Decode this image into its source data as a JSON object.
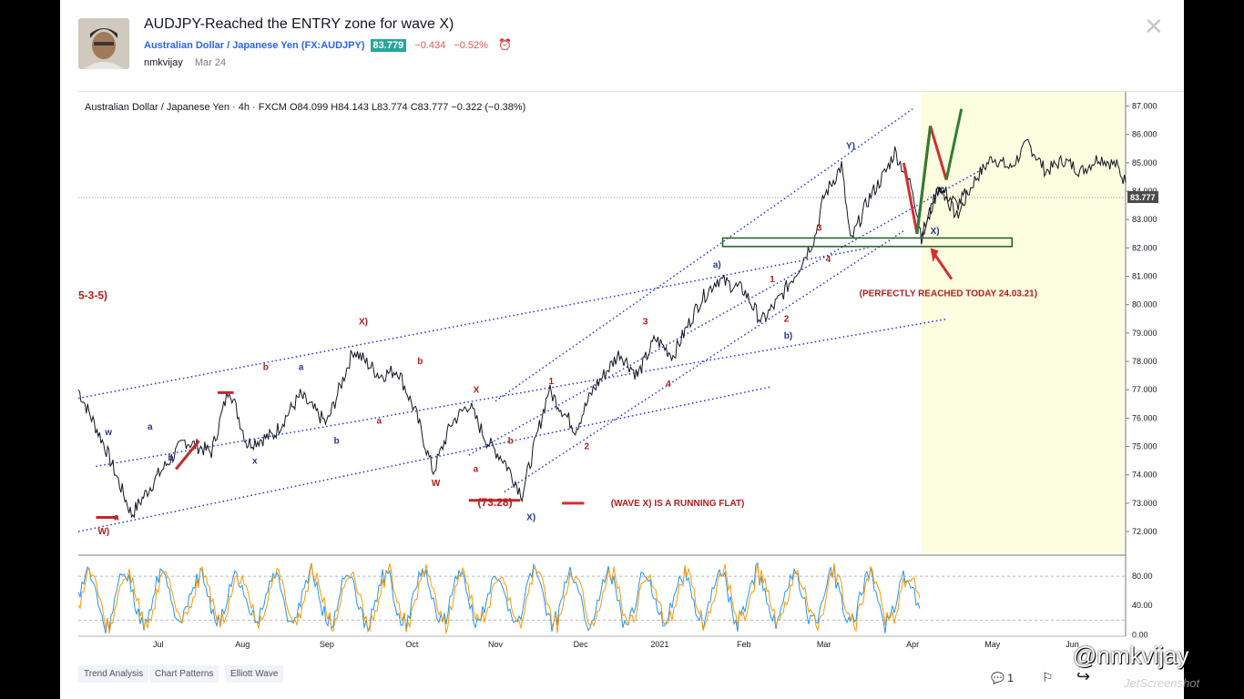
{
  "header": {
    "title": "AUDJPY-Reached the ENTRY zone for wave X)",
    "symbol_name": "Australian Dollar / Japanese Yen (FX:AUDJPY)",
    "price": "83.779",
    "change": "−0.434",
    "change_pct": "−0.52%",
    "author": "nmkvijay",
    "date": "Mar 24"
  },
  "chart_data": {
    "type": "line",
    "legend_text": "Australian Dollar / Japanese Yen · 4h · FXCM",
    "ohlc": "O84.099 H84.143 L83.774 C83.777 −0.322 (−0.38%)",
    "ylim": [
      71.2,
      87.5
    ],
    "yticks": [
      "87.000",
      "86.000",
      "85.000",
      "84.000",
      "83.000",
      "82.000",
      "81.000",
      "80.000",
      "79.000",
      "78.000",
      "77.000",
      "76.000",
      "75.000",
      "74.000",
      "73.000",
      "72.000"
    ],
    "last_price_label": "83.777",
    "last_price": 83.777,
    "months": [
      "Jul",
      "Aug",
      "Sep",
      "Oct",
      "Nov",
      "Dec",
      "2021",
      "Feb",
      "Mar",
      "Apr",
      "May",
      "Jun"
    ],
    "price_path": [
      [
        0,
        77
      ],
      [
        3,
        75
      ],
      [
        6,
        72.6
      ],
      [
        9,
        74
      ],
      [
        12,
        75.2
      ],
      [
        15,
        74.8
      ],
      [
        17,
        77.1
      ],
      [
        19,
        75.1
      ],
      [
        22,
        75.4
      ],
      [
        25,
        76.8
      ],
      [
        28,
        75.8
      ],
      [
        31,
        78.4
      ],
      [
        34,
        77.5
      ],
      [
        36,
        77.7
      ],
      [
        38,
        76.2
      ],
      [
        40,
        74.1
      ],
      [
        42,
        75.8
      ],
      [
        44,
        76.5
      ],
      [
        46,
        75.2
      ],
      [
        48,
        74.5
      ],
      [
        50,
        73.3
      ],
      [
        53,
        77
      ],
      [
        56,
        75.6
      ],
      [
        58,
        77
      ],
      [
        61,
        78.3
      ],
      [
        63,
        77.5
      ],
      [
        65,
        78.8
      ],
      [
        67,
        78.2
      ],
      [
        70,
        80.1
      ],
      [
        72,
        80.9
      ],
      [
        75,
        80.5
      ],
      [
        77,
        79.4
      ],
      [
        79,
        80.2
      ],
      [
        81,
        81.2
      ],
      [
        83,
        82.4
      ],
      [
        84,
        83.8
      ],
      [
        86,
        84.9
      ],
      [
        87,
        82.2
      ],
      [
        89,
        83.7
      ],
      [
        91,
        84.7
      ],
      [
        92,
        85.4
      ],
      [
        94,
        84.1
      ],
      [
        95,
        82.4
      ],
      [
        97,
        84.2
      ],
      [
        99,
        83.5
      ],
      [
        100,
        83.9
      ]
    ],
    "projection_path": [
      [
        95,
        82.4
      ],
      [
        97,
        84.2
      ],
      [
        99,
        83.1
      ],
      [
        101,
        84.4
      ],
      [
        103,
        85.2
      ],
      [
        105,
        84.8
      ],
      [
        107,
        85.7
      ],
      [
        109,
        84.7
      ],
      [
        111,
        85.1
      ],
      [
        113,
        84.7
      ],
      [
        115,
        85.2
      ],
      [
        117,
        84.9
      ],
      [
        118,
        84.3
      ]
    ],
    "projection_zone_start": 95,
    "entry_zone": {
      "x0": 72.6,
      "x1": 105.2,
      "y0": 82.35,
      "y1": 82.05
    },
    "channels": [
      {
        "x1": 0,
        "y1": 76.7,
        "x2": 89,
        "y2": 82.0
      },
      {
        "x1": 0,
        "y1": 72.0,
        "x2": 78,
        "y2": 77.1
      },
      {
        "x1": 2,
        "y1": 74.3,
        "x2": 98,
        "y2": 79.5
      },
      {
        "x1": 48,
        "y1": 73.4,
        "x2": 93,
        "y2": 82.6
      },
      {
        "x1": 47,
        "y1": 76.6,
        "x2": 94,
        "y2": 86.9
      },
      {
        "x1": 44,
        "y1": 74.7,
        "x2": 102,
        "y2": 84.8
      }
    ],
    "drawn_arrows": [
      {
        "color": "#d32f2f",
        "points": [
          [
            93,
            85
          ],
          [
            94.5,
            82.5
          ],
          [
            96,
            86.3
          ],
          [
            97.8,
            84.4
          ]
        ]
      },
      {
        "color": "#2e7d32",
        "points": [
          [
            94.5,
            82.5
          ],
          [
            96,
            86.3
          ]
        ]
      },
      {
        "color": "#2e7d32",
        "points": [
          [
            97.8,
            84.4
          ],
          [
            99.5,
            86.9
          ]
        ]
      }
    ],
    "wave_labels": [
      {
        "text": "Y)",
        "x": 86.5,
        "y": 85.5,
        "color": "#283593"
      },
      {
        "text": "X)",
        "x": 96,
        "y": 82.5,
        "color": "#283593"
      },
      {
        "text": "a)",
        "x": 71.5,
        "y": 81.3,
        "color": "#283593"
      },
      {
        "text": "b)",
        "x": 79.5,
        "y": 78.8,
        "color": "#283593"
      },
      {
        "text": "X)",
        "x": 31.6,
        "y": 79.3,
        "color": "#b71c1c"
      },
      {
        "text": "X)",
        "x": 50.5,
        "y": 72.4,
        "color": "#283593"
      },
      {
        "text": "W)",
        "x": 2.2,
        "y": 71.9,
        "color": "#b71c1c"
      },
      {
        "text": "W",
        "x": 39.8,
        "y": 73.6,
        "color": "#b71c1c"
      },
      {
        "text": "X",
        "x": 44.5,
        "y": 76.9,
        "color": "#b71c1c"
      },
      {
        "text": "w",
        "x": 3,
        "y": 75.4,
        "color": "#283593"
      },
      {
        "text": "x",
        "x": 19.6,
        "y": 74.4,
        "color": "#283593"
      },
      {
        "text": "a",
        "x": 7.8,
        "y": 75.6,
        "color": "#283593"
      },
      {
        "text": "a",
        "x": 24.8,
        "y": 77.7,
        "color": "#283593"
      },
      {
        "text": "b",
        "x": 20.8,
        "y": 77.7,
        "color": "#b71c1c"
      },
      {
        "text": "b",
        "x": 28.8,
        "y": 75.1,
        "color": "#283593"
      },
      {
        "text": "b",
        "x": 38.2,
        "y": 77.9,
        "color": "#b71c1c"
      },
      {
        "text": "a",
        "x": 33.6,
        "y": 75.8,
        "color": "#b71c1c"
      },
      {
        "text": "a",
        "x": 44.5,
        "y": 74.1,
        "color": "#b71c1c"
      },
      {
        "text": "b",
        "x": 48.4,
        "y": 75.1,
        "color": "#b71c1c"
      },
      {
        "text": "a",
        "x": 4,
        "y": 72.4,
        "color": "#b71c1c"
      },
      {
        "text": "b",
        "x": 10.1,
        "y": 74.5,
        "color": "#283593"
      },
      {
        "text": "1",
        "x": 53,
        "y": 77.2,
        "color": "#b71c1c"
      },
      {
        "text": "2",
        "x": 57,
        "y": 74.9,
        "color": "#b71c1c"
      },
      {
        "text": "3",
        "x": 63.6,
        "y": 79.3,
        "color": "#b71c1c"
      },
      {
        "text": "4",
        "x": 66.2,
        "y": 77.1,
        "color": "#b71c1c"
      },
      {
        "text": "1",
        "x": 77.9,
        "y": 80.8,
        "color": "#b71c1c"
      },
      {
        "text": "2",
        "x": 79.5,
        "y": 79.4,
        "color": "#b71c1c"
      },
      {
        "text": "3",
        "x": 83.2,
        "y": 82.6,
        "color": "#b71c1c"
      },
      {
        "text": "4",
        "x": 84.2,
        "y": 81.5,
        "color": "#b71c1c"
      }
    ],
    "annotations": [
      {
        "text": "(73.28)",
        "x": 45,
        "y": 72.9,
        "color": "#b71c1c"
      },
      {
        "text": "(WAVE X) IS A RUNNING FLAT)",
        "x": 60,
        "y": 72.9,
        "color": "#b71c1c"
      },
      {
        "text": "(PERFECTLY REACHED TODAY 24.03.21)",
        "x": 88,
        "y": 80.3,
        "color": "#b71c1c"
      },
      {
        "text": "5-3-5)",
        "x": 0,
        "y": 80.2,
        "color": "#b71c1c"
      }
    ],
    "oscillator": {
      "yticks": [
        "80.00",
        "40.00",
        "0.00"
      ],
      "ylim": [
        -2,
        100
      ],
      "levels": [
        80,
        20
      ]
    }
  },
  "tags": [
    "Trend Analysis",
    "Chart Patterns",
    "Elliott Wave"
  ],
  "footer": {
    "comments": "1"
  },
  "watermark": {
    "handle": "@nmkvijay"
  }
}
